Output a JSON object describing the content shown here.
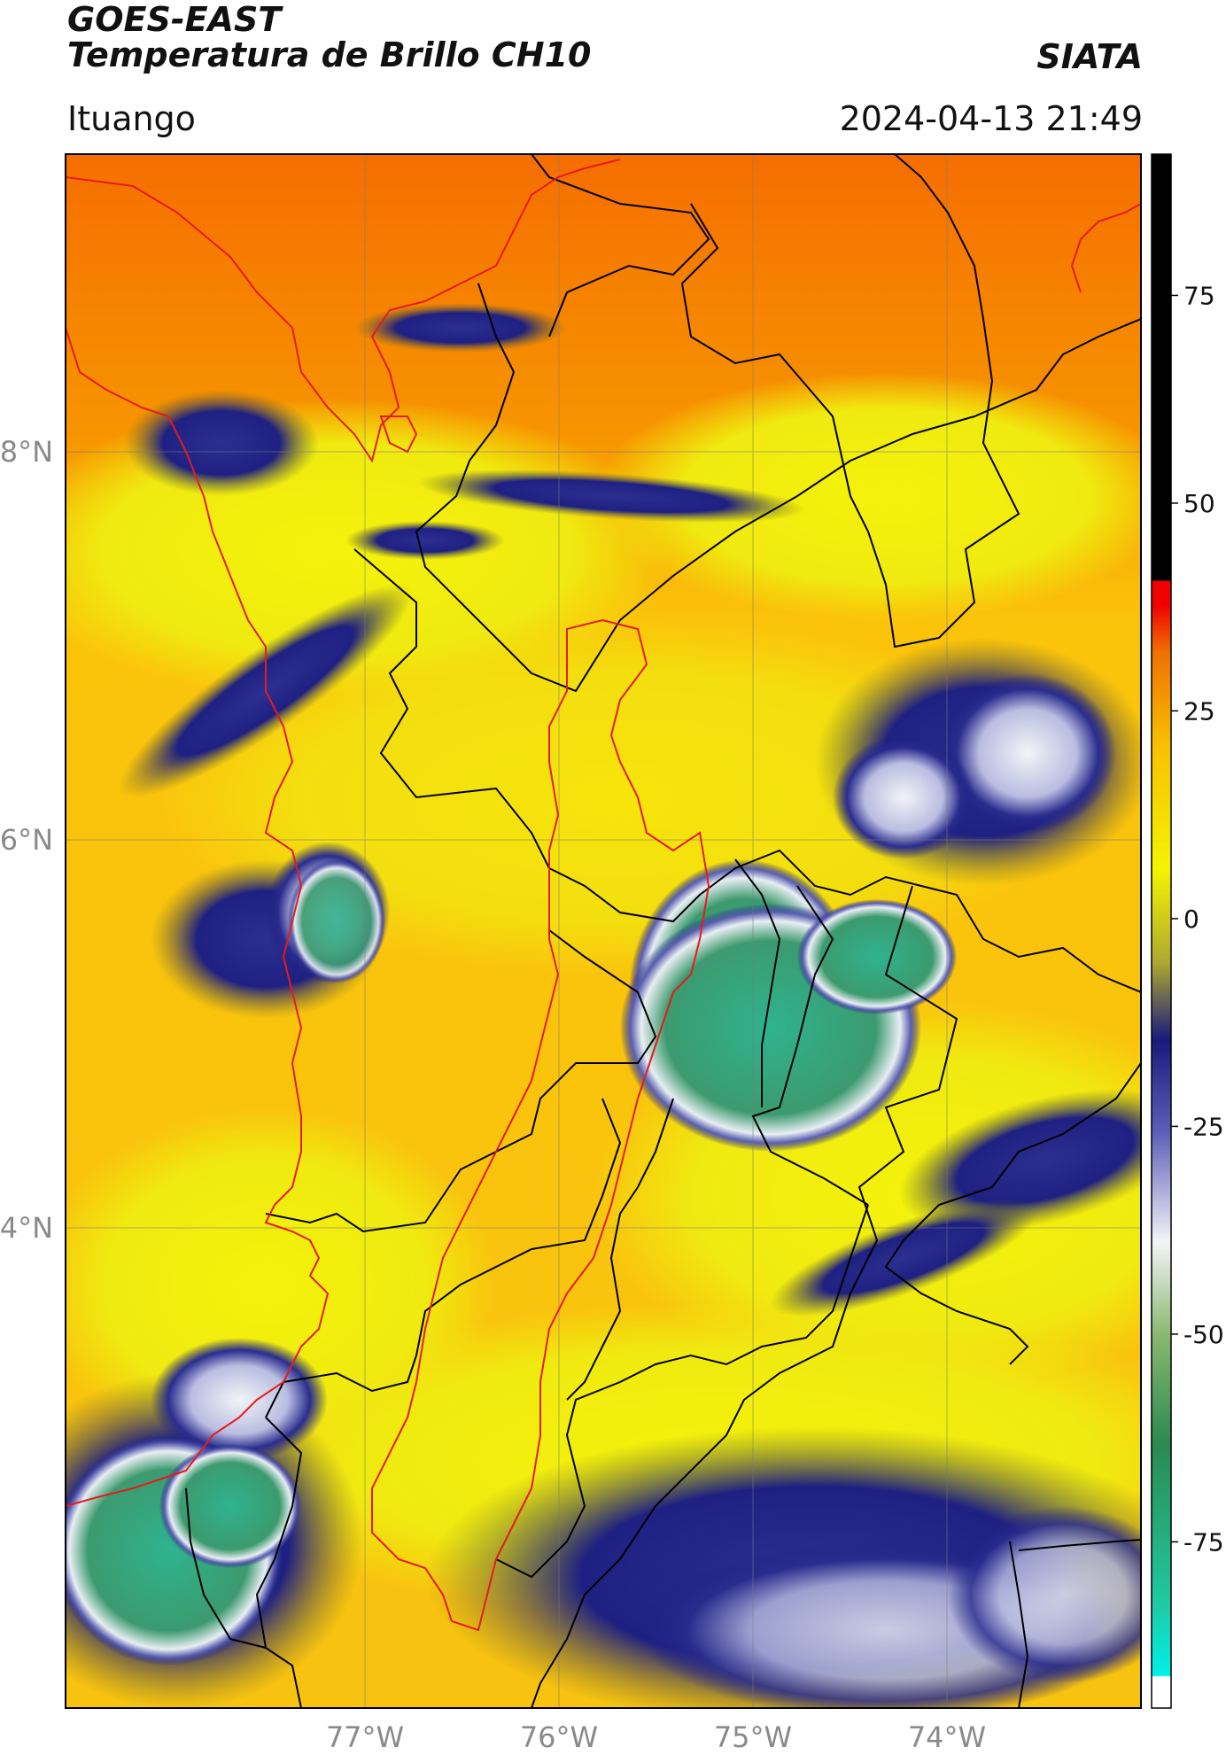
{
  "header": {
    "title_line1": "GOES-EAST",
    "title_line2": "Temperatura de Brillo CH10",
    "organization": "SIATA",
    "location": "Ituango",
    "datetime": "2024-04-13 21:49"
  },
  "map": {
    "lat_labels": [
      "8°N",
      "6°N",
      "4°N"
    ],
    "lon_labels": [
      "77°W",
      "76°W",
      "75°W",
      "74°W"
    ],
    "colors": {
      "background_warm": "#f7a400",
      "warm_land": "#fbc90b",
      "cloud_yellow": "#f7f400",
      "cold_navy": "#1e1f84",
      "cold_white": "#e6e8f2",
      "core_green": "#3aa57a",
      "border_black": "#000000",
      "border_red": "#e61b1b"
    }
  },
  "colorbar": {
    "ticks": [
      "75",
      "50",
      "25",
      "0",
      "-25",
      "-50",
      "-75"
    ],
    "tick_values": [
      75,
      50,
      25,
      0,
      -25,
      -50,
      -75
    ],
    "range": [
      -95,
      92
    ]
  }
}
